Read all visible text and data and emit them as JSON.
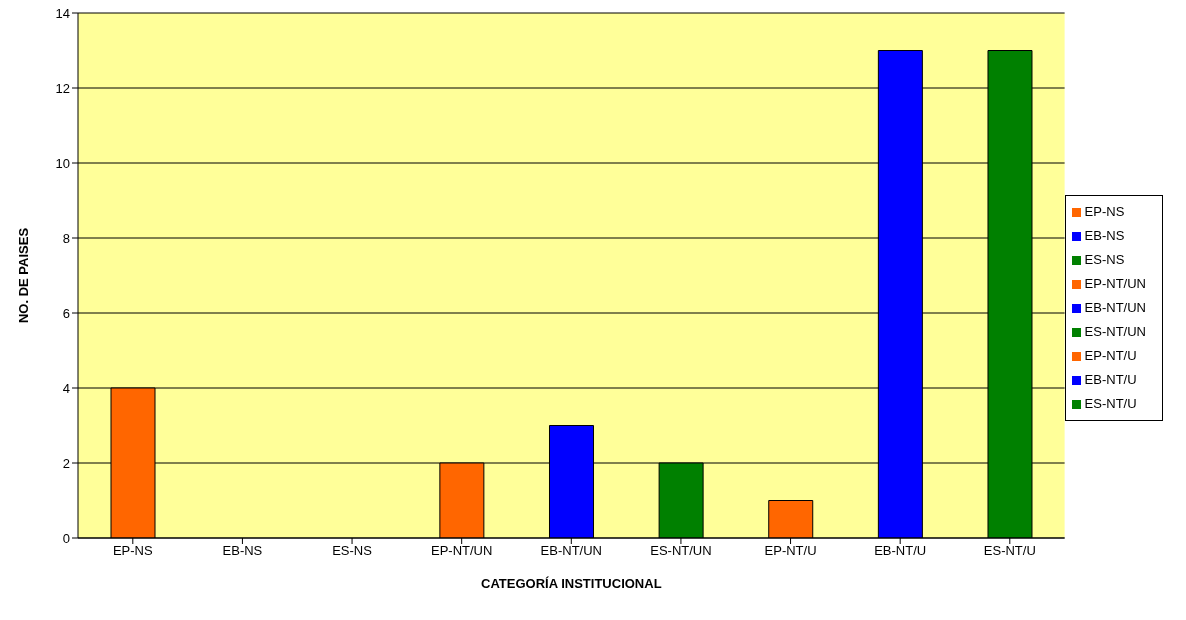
{
  "chart_data": {
    "type": "bar",
    "xlabel": "CATEGORÍA INSTITUCIONAL",
    "ylabel": "NO. DE PAISES",
    "categories": [
      "EP-NS",
      "EB-NS",
      "ES-NS",
      "EP-NT/UN",
      "EB-NT/UN",
      "ES-NT/UN",
      "EP-NT/U",
      "EB-NT/U",
      "ES-NT/U"
    ],
    "stacked": true,
    "series": [
      {
        "name": "EP-NS",
        "color": "#ff6600",
        "values": [
          4,
          null,
          null,
          null,
          null,
          null,
          null,
          null,
          null
        ]
      },
      {
        "name": "EB-NS",
        "color": "#0000ff",
        "values": [
          null,
          0,
          null,
          null,
          null,
          null,
          null,
          null,
          null
        ]
      },
      {
        "name": "ES-NS",
        "color": "#008000",
        "values": [
          null,
          null,
          0,
          null,
          null,
          null,
          null,
          null,
          null
        ]
      },
      {
        "name": "EP-NT/UN",
        "color": "#ff6600",
        "values": [
          null,
          null,
          null,
          2,
          null,
          null,
          null,
          null,
          null
        ]
      },
      {
        "name": "EB-NT/UN",
        "color": "#0000ff",
        "values": [
          null,
          null,
          null,
          null,
          3,
          null,
          null,
          null,
          null
        ]
      },
      {
        "name": "ES-NT/UN",
        "color": "#008000",
        "values": [
          null,
          null,
          null,
          null,
          null,
          2,
          null,
          null,
          null
        ]
      },
      {
        "name": "EP-NT/U",
        "color": "#ff6600",
        "values": [
          null,
          null,
          null,
          null,
          null,
          null,
          1,
          null,
          null
        ]
      },
      {
        "name": "EB-NT/U",
        "color": "#0000ff",
        "values": [
          null,
          null,
          null,
          null,
          null,
          null,
          null,
          13,
          null
        ]
      },
      {
        "name": "ES-NT/U",
        "color": "#008000",
        "values": [
          null,
          null,
          null,
          null,
          null,
          null,
          null,
          null,
          13
        ]
      }
    ],
    "ylim": [
      0,
      14
    ],
    "yticks": [
      0,
      2,
      4,
      6,
      8,
      10,
      12,
      14
    ],
    "grid": "y",
    "legend": "right"
  }
}
